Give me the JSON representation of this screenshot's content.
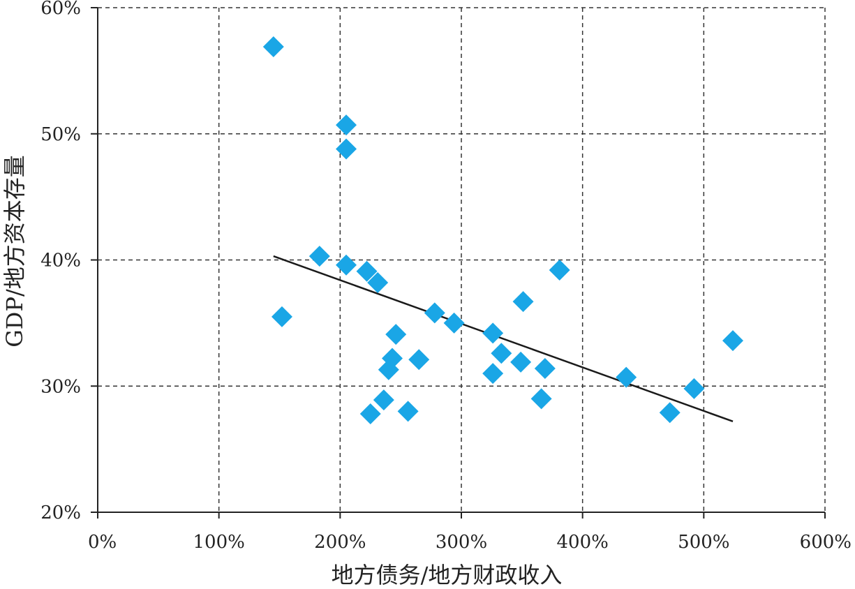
{
  "chart_data": {
    "type": "scatter",
    "title": "",
    "xlabel": "地方债务/地方财政收入",
    "ylabel": "GDP/地方资本存量",
    "xlim": [
      0,
      600
    ],
    "ylim": [
      20,
      60
    ],
    "x_ticks": [
      0,
      100,
      200,
      300,
      400,
      500,
      600
    ],
    "y_ticks": [
      20,
      30,
      40,
      50,
      60
    ],
    "x_tick_labels": [
      "0%",
      "100%",
      "200%",
      "300%",
      "400%",
      "500%",
      "600%"
    ],
    "y_tick_labels": [
      "20%",
      "30%",
      "40%",
      "50%",
      "60%"
    ],
    "grid": true,
    "marker_color": "#1aa6e6",
    "trend_color": "#1a1a1a",
    "series": [
      {
        "points": [
          [
            145,
            56.9
          ],
          [
            152,
            35.5
          ],
          [
            183,
            40.3
          ],
          [
            205,
            50.7
          ],
          [
            205,
            48.8
          ],
          [
            205,
            39.6
          ],
          [
            222,
            39.1
          ],
          [
            231,
            38.2
          ],
          [
            225,
            27.8
          ],
          [
            236,
            28.9
          ],
          [
            240,
            31.3
          ],
          [
            243,
            32.2
          ],
          [
            246,
            34.1
          ],
          [
            256,
            28.0
          ],
          [
            265,
            32.1
          ],
          [
            278,
            35.8
          ],
          [
            294,
            35.0
          ],
          [
            326,
            34.2
          ],
          [
            326,
            31.0
          ],
          [
            333,
            32.6
          ],
          [
            349,
            31.9
          ],
          [
            351,
            36.7
          ],
          [
            366,
            29.0
          ],
          [
            369,
            31.4
          ],
          [
            381,
            39.2
          ],
          [
            436,
            30.7
          ],
          [
            472,
            27.9
          ],
          [
            492,
            29.8
          ],
          [
            524,
            33.6
          ]
        ]
      }
    ],
    "trendline": {
      "x": [
        145,
        524
      ],
      "y": [
        40.3,
        27.2
      ]
    }
  }
}
